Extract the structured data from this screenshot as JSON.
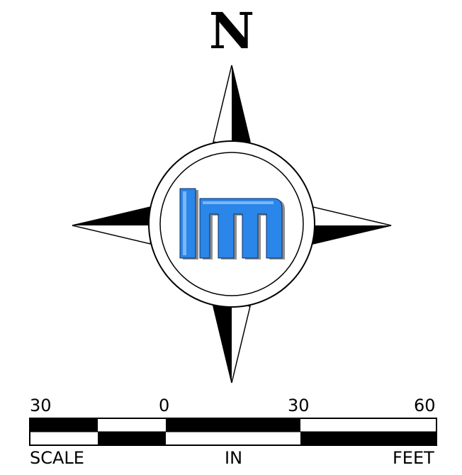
{
  "compass": {
    "north_label": "N",
    "logo_color": "#2a86e8",
    "logo_shadow_color": "#8c8c8c"
  },
  "scale_bar": {
    "ticks": [
      "30",
      "0",
      "30",
      "60"
    ],
    "left_label": "SCALE",
    "center_label": "IN",
    "right_label": "FEET"
  }
}
